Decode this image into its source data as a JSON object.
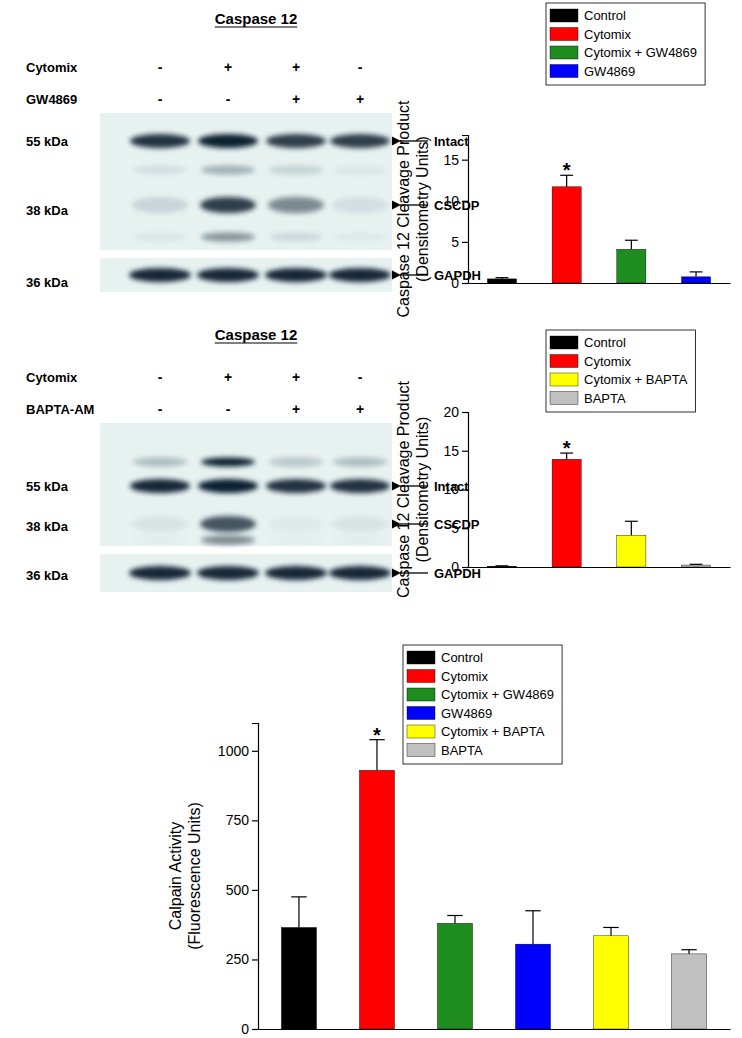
{
  "chart_data": [
    {
      "type": "bar",
      "categories": [
        null
      ],
      "series": [
        {
          "name": "Control",
          "color": "#000000",
          "values": [
            0.5
          ],
          "error": [
            0.15
          ]
        },
        {
          "name": "Cytomix",
          "color": "#ff0000",
          "values": [
            11.7
          ],
          "error": [
            1.4
          ],
          "annotation": "*"
        },
        {
          "name": "Cytomix + GW4869",
          "color": "#1e8c1e",
          "values": [
            4.1
          ],
          "error": [
            1.1
          ]
        },
        {
          "name": "GW4869",
          "color": "#0000ff",
          "values": [
            0.75
          ],
          "error": [
            0.6
          ]
        }
      ],
      "y_label": [
        "Caspase 12 Cleavage Product",
        "(Densitometry Units)"
      ],
      "ylim": [
        0,
        18
      ],
      "yticks": [
        0,
        5,
        10,
        15
      ],
      "legend": "top",
      "tick_labels": "y"
    },
    {
      "type": "bar",
      "categories": [
        null
      ],
      "series": [
        {
          "name": "Control",
          "color": "#000000",
          "values": [
            0.1
          ],
          "error": [
            0.05
          ]
        },
        {
          "name": "Cytomix",
          "color": "#ff0000",
          "values": [
            13.9
          ],
          "error": [
            0.8
          ],
          "annotation": "*"
        },
        {
          "name": "Cytomix + BAPTA",
          "color": "#ffff00",
          "values": [
            4.1
          ],
          "error": [
            1.8
          ]
        },
        {
          "name": "BAPTA",
          "color": "#c0c0c0",
          "values": [
            0.25
          ],
          "error": [
            0.1
          ]
        }
      ],
      "y_label": [
        "Caspase 12 Cleavage Product",
        "(Densitometry Units)"
      ],
      "ylim": [
        0,
        20
      ],
      "yticks": [
        0,
        5,
        10,
        15,
        20
      ],
      "legend": "top",
      "tick_labels": "y"
    },
    {
      "type": "bar",
      "categories": [
        null
      ],
      "series": [
        {
          "name": "Control",
          "color": "#000000",
          "values": [
            365
          ],
          "error": [
            110
          ]
        },
        {
          "name": "Cytomix",
          "color": "#ff0000",
          "values": [
            930
          ],
          "error": [
            110
          ],
          "annotation": "*"
        },
        {
          "name": "Cytomix + GW4869",
          "color": "#1e8c1e",
          "values": [
            380
          ],
          "error": [
            28
          ]
        },
        {
          "name": "GW4869",
          "color": "#0000ff",
          "values": [
            305
          ],
          "error": [
            120
          ]
        },
        {
          "name": "Cytomix + BAPTA",
          "color": "#ffff00",
          "values": [
            335
          ],
          "error": [
            30
          ]
        },
        {
          "name": "BAPTA",
          "color": "#c0c0c0",
          "values": [
            270
          ],
          "error": [
            15
          ]
        }
      ],
      "y_label": [
        "Calpain Activity",
        "(Fluorescence Units)"
      ],
      "ylim": [
        0,
        1100
      ],
      "yticks": [
        0,
        250,
        500,
        750,
        1000
      ],
      "legend": "top",
      "tick_labels": "y"
    }
  ],
  "blots": [
    {
      "title": "Caspase 12",
      "treatments": [
        {
          "name": "Cytomix",
          "signs": [
            "-",
            "+",
            "+",
            "-"
          ]
        },
        {
          "name": "GW4869",
          "signs": [
            "-",
            "-",
            "+",
            "+"
          ]
        }
      ],
      "markers": [
        {
          "size": "55 kDa",
          "band": "Intact"
        },
        {
          "size": "38 kDa",
          "band": "CSCDP"
        },
        {
          "size": "36 kDa",
          "band": "GAPDH"
        }
      ]
    },
    {
      "title": "Caspase 12",
      "treatments": [
        {
          "name": "Cytomix",
          "signs": [
            "-",
            "+",
            "+",
            "-"
          ]
        },
        {
          "name": "BAPTA-AM",
          "signs": [
            "-",
            "-",
            "+",
            "+"
          ]
        }
      ],
      "markers": [
        {
          "size": "55 kDa",
          "band": "Intact"
        },
        {
          "size": "38 kDa",
          "band": "CSCDP"
        },
        {
          "size": "36 kDa",
          "band": "GAPDH"
        }
      ]
    }
  ]
}
